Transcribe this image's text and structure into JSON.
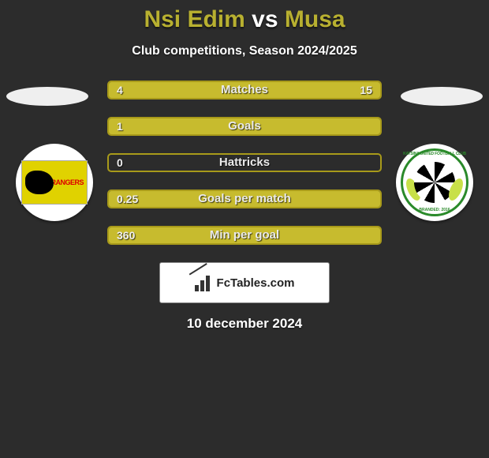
{
  "title_left": "Nsi Edim",
  "title_vs": "vs",
  "title_right": "Musa",
  "title_left_color": "#b8b030",
  "title_vs_color": "#ffffff",
  "title_right_color": "#b8b030",
  "subtitle": "Club competitions, Season 2024/2025",
  "left_team": {
    "name": "RANGERS",
    "badge_bg": "#e0d200"
  },
  "right_team": {
    "name": "KATSINA UNITED FOOTBALL CLUB",
    "sub": "BRANDED: 2016"
  },
  "bar_border_color": "#a89a1a",
  "bar_fill_left_color": "#c7bb2e",
  "bar_fill_right_color": "#c7bb2e",
  "bars": [
    {
      "label": "Matches",
      "left": "4",
      "right": "15",
      "left_pct": 21,
      "right_pct": 79
    },
    {
      "label": "Goals",
      "left": "1",
      "right": "",
      "left_pct": 100,
      "right_pct": 0
    },
    {
      "label": "Hattricks",
      "left": "0",
      "right": "",
      "left_pct": 0,
      "right_pct": 0
    },
    {
      "label": "Goals per match",
      "left": "0.25",
      "right": "",
      "left_pct": 100,
      "right_pct": 0
    },
    {
      "label": "Min per goal",
      "left": "360",
      "right": "",
      "left_pct": 100,
      "right_pct": 0
    }
  ],
  "footer": "FcTables.com",
  "date": "10 december 2024"
}
